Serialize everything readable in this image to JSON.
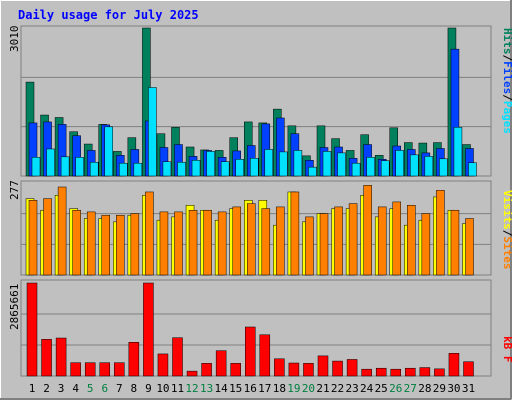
{
  "title": "Daily usage for July 2025",
  "colors": {
    "background": "#c0c0c0",
    "title": "#0000ff",
    "hits": "#00805c",
    "files": "#0040ff",
    "pages": "#00e0ff",
    "visits": "#ffff00",
    "sites": "#ff8000",
    "kbytes": "#ff0000",
    "weekend_label": "#008040",
    "label": "#000000"
  },
  "chart_data": [
    {
      "type": "bar",
      "panel": "hits-files-pages",
      "ylabel_max": "3010",
      "legend": [
        {
          "label": "Pages",
          "color": "#00e0ff"
        },
        {
          "label": "Files",
          "color": "#0040ff"
        },
        {
          "label": "Hits",
          "color": "#00805c"
        }
      ],
      "ylim": [
        0,
        3010
      ],
      "categories": [
        "1",
        "2",
        "3",
        "4",
        "5",
        "6",
        "7",
        "8",
        "9",
        "10",
        "11",
        "12",
        "13",
        "14",
        "15",
        "16",
        "17",
        "18",
        "19",
        "20",
        "21",
        "22",
        "23",
        "24",
        "25",
        "26",
        "27",
        "28",
        "29",
        "30",
        "31"
      ],
      "series": [
        {
          "name": "Hits",
          "values": [
            1910,
            1240,
            1190,
            900,
            650,
            1050,
            500,
            780,
            3010,
            860,
            990,
            590,
            530,
            520,
            780,
            1100,
            1080,
            1360,
            1020,
            410,
            1020,
            760,
            520,
            840,
            420,
            980,
            680,
            670,
            680,
            3010,
            640
          ]
        },
        {
          "name": "Files",
          "values": [
            1080,
            1100,
            1050,
            820,
            520,
            1040,
            420,
            540,
            1120,
            580,
            640,
            400,
            520,
            380,
            510,
            620,
            1060,
            1180,
            860,
            320,
            580,
            590,
            360,
            640,
            340,
            610,
            540,
            470,
            560,
            2580,
            560
          ]
        },
        {
          "name": "Pages",
          "values": [
            380,
            550,
            390,
            380,
            280,
            1000,
            260,
            260,
            1800,
            290,
            280,
            320,
            500,
            290,
            340,
            360,
            540,
            490,
            520,
            180,
            500,
            470,
            260,
            380,
            310,
            520,
            430,
            400,
            350,
            990,
            270
          ]
        }
      ]
    },
    {
      "type": "bar",
      "panel": "visits-sites",
      "ylabel_max": "277",
      "legend": [
        {
          "label": "Sites",
          "color": "#ff8000"
        },
        {
          "label": "Visits",
          "color": "#ffff00"
        }
      ],
      "ylim": [
        0,
        277
      ],
      "categories": [
        "1",
        "2",
        "3",
        "4",
        "5",
        "6",
        "7",
        "8",
        "9",
        "10",
        "11",
        "12",
        "13",
        "14",
        "15",
        "16",
        "17",
        "18",
        "19",
        "20",
        "21",
        "22",
        "23",
        "24",
        "25",
        "26",
        "27",
        "28",
        "29",
        "30",
        "31"
      ],
      "series": [
        {
          "name": "Visits",
          "values": [
            230,
            195,
            240,
            200,
            170,
            170,
            160,
            180,
            240,
            165,
            175,
            210,
            195,
            165,
            200,
            225,
            225,
            150,
            250,
            160,
            185,
            200,
            200,
            240,
            175,
            200,
            150,
            165,
            235,
            195,
            155
          ]
        },
        {
          "name": "Sites",
          "values": [
            225,
            230,
            265,
            195,
            190,
            180,
            180,
            185,
            250,
            190,
            190,
            195,
            195,
            190,
            205,
            215,
            200,
            205,
            250,
            175,
            185,
            205,
            215,
            270,
            205,
            220,
            210,
            185,
            255,
            195,
            170
          ]
        }
      ]
    },
    {
      "type": "bar",
      "panel": "kbytes",
      "ylabel_max": "2865661",
      "legend": [
        {
          "label": "kB F",
          "color": "#ff0000"
        }
      ],
      "ylim": [
        0,
        2865661
      ],
      "categories": [
        "1",
        "2",
        "3",
        "4",
        "5",
        "6",
        "7",
        "8",
        "9",
        "10",
        "11",
        "12",
        "13",
        "14",
        "15",
        "16",
        "17",
        "18",
        "19",
        "20",
        "21",
        "22",
        "23",
        "24",
        "25",
        "26",
        "27",
        "28",
        "29",
        "30",
        "31"
      ],
      "series": [
        {
          "name": "kB F",
          "values": [
            2865661,
            1130000,
            1170000,
            410000,
            410000,
            410000,
            410000,
            1040000,
            2865661,
            680000,
            1180000,
            150000,
            390000,
            780000,
            390000,
            1510000,
            1270000,
            530000,
            400000,
            390000,
            620000,
            460000,
            510000,
            210000,
            240000,
            210000,
            240000,
            260000,
            220000,
            700000,
            440000
          ]
        }
      ],
      "weekend_days": [
        "5",
        "6",
        "12",
        "13",
        "19",
        "20",
        "26",
        "27"
      ]
    }
  ]
}
